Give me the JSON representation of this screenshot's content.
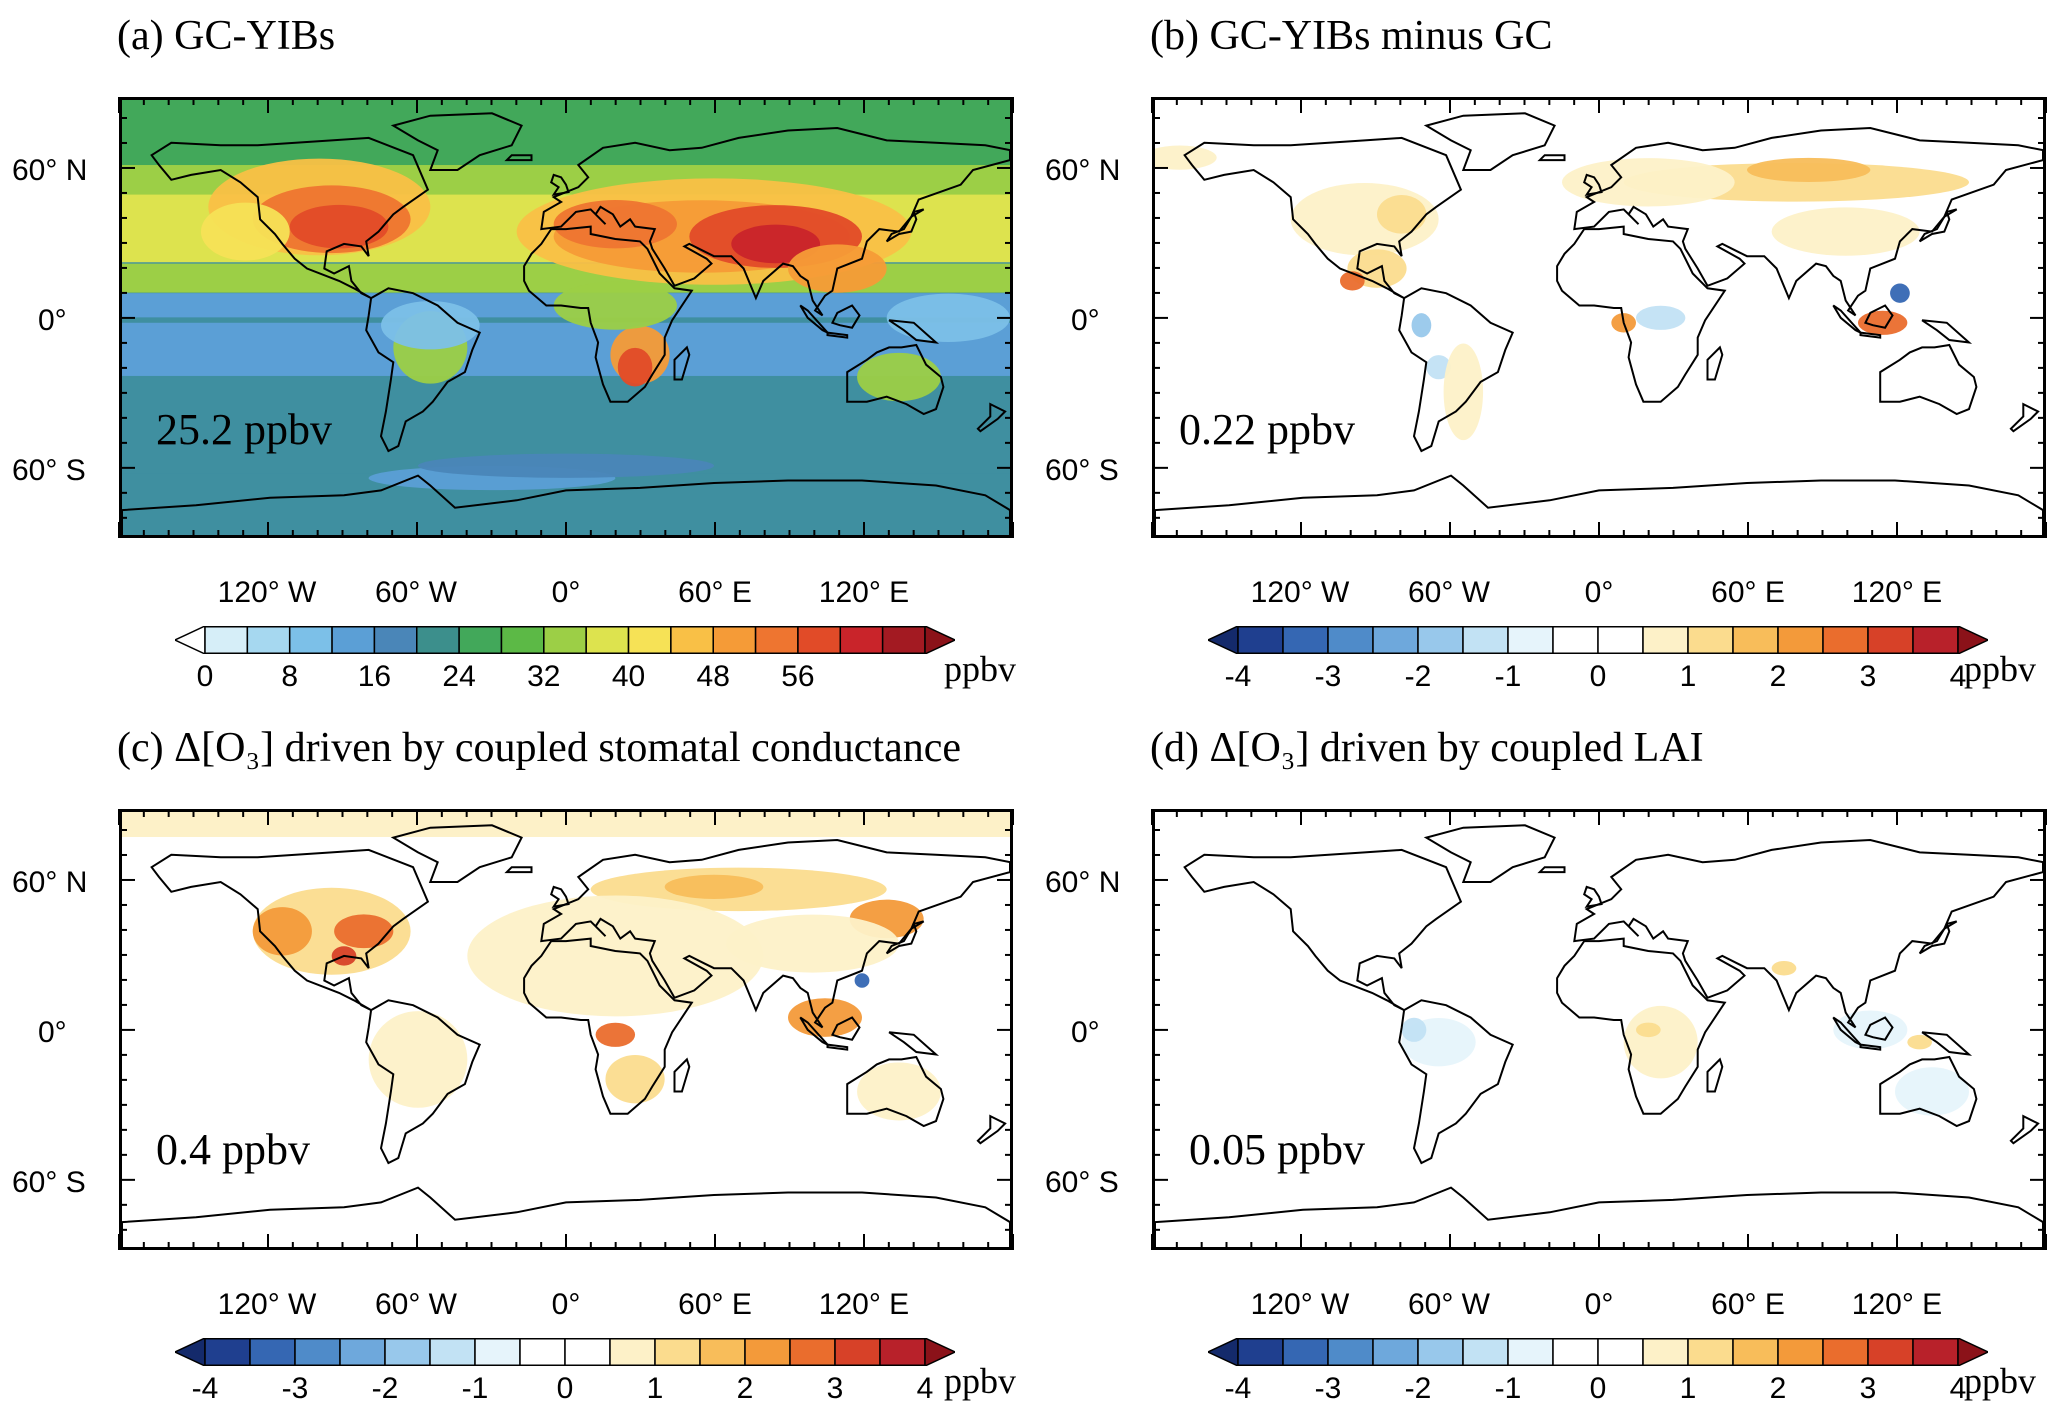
{
  "panels": [
    {
      "id": "a",
      "title": "(a) GC-YIBs",
      "mean": "25.2 ppbv",
      "scheme": "absolute",
      "colorbar": {
        "ticks": [
          "0",
          "8",
          "16",
          "24",
          "32",
          "40",
          "48",
          "56"
        ],
        "unit": "ppbv",
        "colors": [
          "#ffffff",
          "#d6eef8",
          "#a6d8f0",
          "#7cc0e8",
          "#5b9fd6",
          "#4a86b8",
          "#3c8f8c",
          "#42a85a",
          "#5cb946",
          "#9ccf46",
          "#dde34e",
          "#f6e256",
          "#f9c046",
          "#f59b37",
          "#ee7530",
          "#e14b28",
          "#c9242a",
          "#a31a22"
        ],
        "under": "#ffffff",
        "over": "#8b1219"
      }
    },
    {
      "id": "b",
      "title": "(b) GC-YIBs minus GC",
      "mean": "0.22 ppbv",
      "scheme": "diff",
      "colorbar": {
        "ticks": [
          "-4",
          "-3",
          "-2",
          "-1",
          "0",
          "1",
          "2",
          "3",
          "4"
        ],
        "unit": "ppbv"
      }
    },
    {
      "id": "c",
      "title": "(c) Δ[O₃] driven by coupled stomatal conductance",
      "mean": "0.4 ppbv",
      "scheme": "diff",
      "colorbar": {
        "ticks": [
          "-4",
          "-3",
          "-2",
          "-1",
          "0",
          "1",
          "2",
          "3",
          "4"
        ],
        "unit": "ppbv"
      }
    },
    {
      "id": "d",
      "title": "(d) Δ[O₃] driven by coupled LAI",
      "mean": "0.05 ppbv",
      "scheme": "diff",
      "colorbar": {
        "ticks": [
          "-4",
          "-3",
          "-2",
          "-1",
          "0",
          "1",
          "2",
          "3",
          "4"
        ],
        "unit": "ppbv"
      }
    }
  ],
  "diff_colors": [
    "#1f3f8f",
    "#3567b3",
    "#4f8bc9",
    "#6ea8dc",
    "#98c8eb",
    "#c2e2f4",
    "#e6f4fb",
    "#ffffff",
    "#ffffff",
    "#fdf1c8",
    "#fbdc8e",
    "#f8bd5a",
    "#f39a3a",
    "#ea6d2d",
    "#d74128",
    "#b8212a"
  ],
  "diff_under": "#142a6b",
  "diff_over": "#8b1219",
  "lat_labels": [
    "60° N",
    "0°",
    "60° S"
  ],
  "lon_labels": [
    "120° W",
    "60° W",
    "0°",
    "60° E",
    "120° E"
  ]
}
